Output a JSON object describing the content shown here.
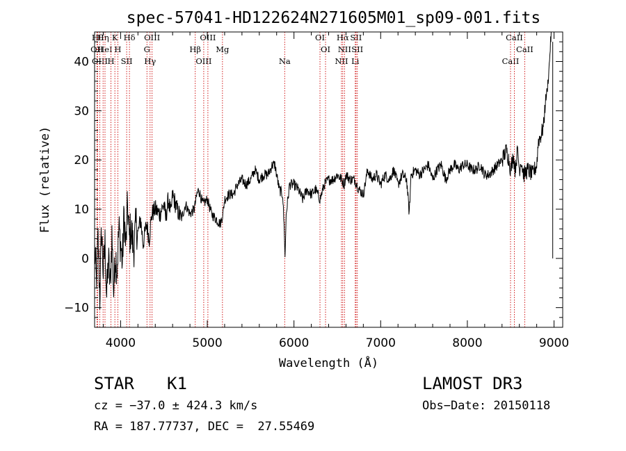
{
  "chart_data": {
    "type": "line",
    "title": "spec-57041-HD122624N271605M01_sp09-001.fits",
    "xlabel": "Wavelength (Å)",
    "ylabel": "Flux (relative)",
    "xlim": [
      3700,
      9100
    ],
    "ylim": [
      -14,
      46
    ],
    "x_ticks": [
      4000,
      5000,
      6000,
      7000,
      8000,
      9000
    ],
    "x_tick_labels": [
      "4000",
      "5000",
      "6000",
      "7000",
      "8000",
      "9000"
    ],
    "y_ticks": [
      -10,
      0,
      10,
      20,
      30,
      40
    ],
    "y_tick_labels": [
      "−10",
      "0",
      "10",
      "20",
      "30",
      "40"
    ],
    "grid": false,
    "line_color": "#000000",
    "marker_color": "#cc0000",
    "series": [
      {
        "points": [
          [
            3700,
            2
          ],
          [
            3720,
            -5
          ],
          [
            3740,
            4
          ],
          [
            3760,
            -8
          ],
          [
            3780,
            6
          ],
          [
            3800,
            -3
          ],
          [
            3820,
            3
          ],
          [
            3840,
            -8
          ],
          [
            3860,
            0
          ],
          [
            3880,
            -6
          ],
          [
            3900,
            5
          ],
          [
            3920,
            -7
          ],
          [
            3940,
            1
          ],
          [
            3960,
            -2
          ],
          [
            3980,
            6
          ],
          [
            4000,
            3
          ],
          [
            4020,
            -1
          ],
          [
            4040,
            9
          ],
          [
            4060,
            2
          ],
          [
            4080,
            11
          ],
          [
            4100,
            4
          ],
          [
            4120,
            6
          ],
          [
            4150,
            2
          ],
          [
            4180,
            7
          ],
          [
            4200,
            5
          ],
          [
            4230,
            8
          ],
          [
            4260,
            3
          ],
          [
            4300,
            7
          ],
          [
            4330,
            4
          ],
          [
            4360,
            9
          ],
          [
            4400,
            10
          ],
          [
            4450,
            9
          ],
          [
            4500,
            11
          ],
          [
            4520,
            8
          ],
          [
            4550,
            12
          ],
          [
            4580,
            9
          ],
          [
            4600,
            13
          ],
          [
            4650,
            10
          ],
          [
            4700,
            8
          ],
          [
            4750,
            11
          ],
          [
            4800,
            9
          ],
          [
            4850,
            10
          ],
          [
            4880,
            13
          ],
          [
            4900,
            14
          ],
          [
            4950,
            11
          ],
          [
            5000,
            12
          ],
          [
            5050,
            9
          ],
          [
            5100,
            8
          ],
          [
            5150,
            7
          ],
          [
            5180,
            9
          ],
          [
            5200,
            12
          ],
          [
            5250,
            13
          ],
          [
            5300,
            13
          ],
          [
            5350,
            15
          ],
          [
            5400,
            16
          ],
          [
            5450,
            15
          ],
          [
            5500,
            16
          ],
          [
            5550,
            18
          ],
          [
            5600,
            16
          ],
          [
            5650,
            17
          ],
          [
            5700,
            17
          ],
          [
            5750,
            19
          ],
          [
            5780,
            19
          ],
          [
            5800,
            17
          ],
          [
            5830,
            14
          ],
          [
            5870,
            13
          ],
          [
            5890,
            5
          ],
          [
            5897,
            0
          ],
          [
            5910,
            9
          ],
          [
            5950,
            15
          ],
          [
            6000,
            15
          ],
          [
            6050,
            14
          ],
          [
            6100,
            12
          ],
          [
            6150,
            14
          ],
          [
            6200,
            13
          ],
          [
            6250,
            14
          ],
          [
            6300,
            12
          ],
          [
            6350,
            15
          ],
          [
            6400,
            16
          ],
          [
            6450,
            16
          ],
          [
            6500,
            17
          ],
          [
            6550,
            16
          ],
          [
            6580,
            15
          ],
          [
            6600,
            17
          ],
          [
            6650,
            16
          ],
          [
            6700,
            16
          ],
          [
            6750,
            14
          ],
          [
            6800,
            13
          ],
          [
            6850,
            18
          ],
          [
            6900,
            16
          ],
          [
            6950,
            17
          ],
          [
            7000,
            15
          ],
          [
            7050,
            17
          ],
          [
            7100,
            16
          ],
          [
            7150,
            18
          ],
          [
            7200,
            15
          ],
          [
            7250,
            17
          ],
          [
            7300,
            16
          ],
          [
            7330,
            9
          ],
          [
            7350,
            17
          ],
          [
            7400,
            18
          ],
          [
            7450,
            17
          ],
          [
            7500,
            18
          ],
          [
            7550,
            19
          ],
          [
            7600,
            16
          ],
          [
            7650,
            18
          ],
          [
            7700,
            19
          ],
          [
            7750,
            16
          ],
          [
            7800,
            18
          ],
          [
            7850,
            19
          ],
          [
            7900,
            18
          ],
          [
            7950,
            19
          ],
          [
            8000,
            19
          ],
          [
            8050,
            18
          ],
          [
            8100,
            18
          ],
          [
            8150,
            19
          ],
          [
            8200,
            17
          ],
          [
            8250,
            17
          ],
          [
            8300,
            18
          ],
          [
            8350,
            19
          ],
          [
            8400,
            20
          ],
          [
            8450,
            22
          ],
          [
            8480,
            20
          ],
          [
            8500,
            18
          ],
          [
            8530,
            21
          ],
          [
            8550,
            18
          ],
          [
            8580,
            22
          ],
          [
            8600,
            18
          ],
          [
            8620,
            20
          ],
          [
            8650,
            17
          ],
          [
            8700,
            18
          ],
          [
            8750,
            17
          ],
          [
            8800,
            19
          ],
          [
            8820,
            24
          ],
          [
            8850,
            25
          ],
          [
            8880,
            27
          ],
          [
            8900,
            32
          ],
          [
            8920,
            34
          ],
          [
            8940,
            38
          ],
          [
            8960,
            44
          ],
          [
            8970,
            46
          ]
        ]
      }
    ],
    "line_markers": [
      {
        "x": 3735,
        "label": "Hθ"
      },
      {
        "x": 3727,
        "label": "OII"
      },
      {
        "x": 3760,
        "label": "OIII"
      },
      {
        "x": 3798,
        "label": "Hη"
      },
      {
        "x": 3820,
        "label": "HeI"
      },
      {
        "x": 3889,
        "label": "H"
      },
      {
        "x": 3934,
        "label": "K"
      },
      {
        "x": 3968,
        "label": "H"
      },
      {
        "x": 4070,
        "label": "SII"
      },
      {
        "x": 4102,
        "label": "Hδ"
      },
      {
        "x": 4304,
        "label": "G"
      },
      {
        "x": 4340,
        "label": "Hγ"
      },
      {
        "x": 4363,
        "label": "OIII"
      },
      {
        "x": 4861,
        "label": "Hβ"
      },
      {
        "x": 4959,
        "label": "OIII"
      },
      {
        "x": 5007,
        "label": "OIII"
      },
      {
        "x": 5175,
        "label": "Mg"
      },
      {
        "x": 5893,
        "label": "Na"
      },
      {
        "x": 6300,
        "label": "OI"
      },
      {
        "x": 6364,
        "label": "OI"
      },
      {
        "x": 6548,
        "label": "NII"
      },
      {
        "x": 6563,
        "label": "Hα"
      },
      {
        "x": 6583,
        "label": "NII"
      },
      {
        "x": 6707,
        "label": "Li"
      },
      {
        "x": 6716,
        "label": "SII"
      },
      {
        "x": 6731,
        "label": "SII"
      },
      {
        "x": 8498,
        "label": "CaII"
      },
      {
        "x": 8542,
        "label": "CaII"
      },
      {
        "x": 8662,
        "label": "CaII"
      }
    ]
  },
  "info": {
    "class_label": "STAR",
    "subclass_label": "K1",
    "survey_label": "LAMOST DR3",
    "cz_text": "cz = −37.0 ± 424.3 km/s",
    "obs_date_text": "Obs−Date: 20150118",
    "coord_text": "RA = 187.77737, DEC =  27.55469"
  }
}
